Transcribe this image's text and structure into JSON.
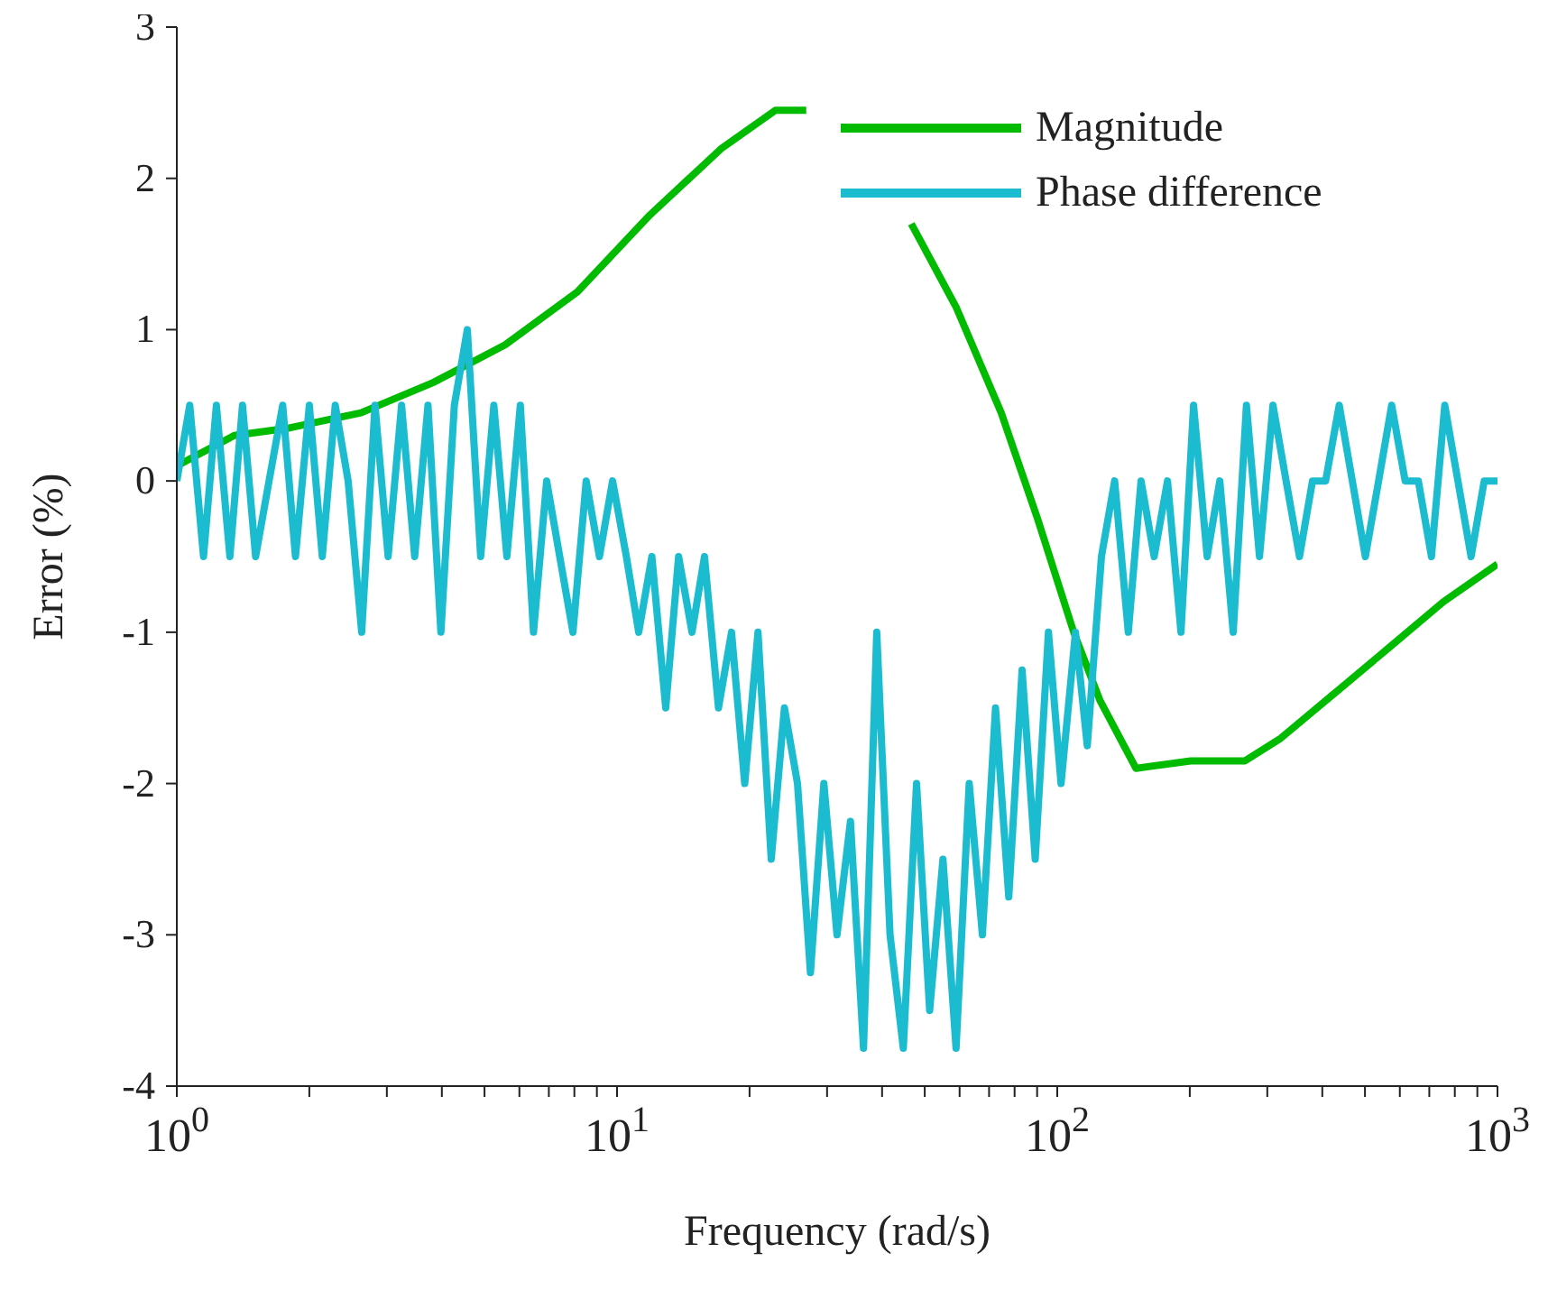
{
  "chart_data": {
    "type": "line",
    "xlabel": "Frequency (rad/s)",
    "ylabel": "Error (%)",
    "log": "x",
    "xlim": [
      1,
      1000
    ],
    "ylim": [
      -4,
      3
    ],
    "yticks": [
      -4,
      -3,
      -2,
      -1,
      0,
      1,
      2,
      3
    ],
    "xticks": [
      {
        "value": 1,
        "label": "10$^{0}$"
      },
      {
        "value": 2,
        "label": null
      },
      {
        "value": 3,
        "label": null
      },
      {
        "value": 4,
        "label": null
      },
      {
        "value": 5,
        "label": null
      },
      {
        "value": 6,
        "label": null
      },
      {
        "value": 7,
        "label": null
      },
      {
        "value": 8,
        "label": null
      },
      {
        "value": 9,
        "label": null
      },
      {
        "value": 10,
        "label": "10$^{1}$"
      },
      {
        "value": 20,
        "label": null
      },
      {
        "value": 30,
        "label": null
      },
      {
        "value": 40,
        "label": null
      },
      {
        "value": 50,
        "label": null
      },
      {
        "value": 60,
        "label": null
      },
      {
        "value": 70,
        "label": null
      },
      {
        "value": 80,
        "label": null
      },
      {
        "value": 90,
        "label": null
      },
      {
        "value": 100,
        "label": "10$^{2}$"
      },
      {
        "value": 200,
        "label": null
      },
      {
        "value": 300,
        "label": null
      },
      {
        "value": 400,
        "label": null
      },
      {
        "value": 500,
        "label": null
      },
      {
        "value": 600,
        "label": null
      },
      {
        "value": 700,
        "label": null
      },
      {
        "value": 800,
        "label": null
      },
      {
        "value": 900,
        "label": null
      },
      {
        "value": 1000,
        "label": "10$^{3}$"
      }
    ],
    "grid": false,
    "legend": "top right",
    "marker": "none",
    "line_style": "solid",
    "series": [
      {
        "name": "Magnitude",
        "color": "#00bb00",
        "x": [
          1,
          1.35,
          1.8,
          2.62,
          3.82,
          5.57,
          8.13,
          11.8,
          17.3,
          22.9,
          26.9,
          35,
          46.6,
          58.9,
          74.6,
          90.2,
          109,
          125,
          151,
          201,
          267,
          322,
          428,
          568,
          753,
          1000
        ],
        "values": [
          0.1,
          0.3,
          0.35,
          0.45,
          0.65,
          0.9,
          1.25,
          1.75,
          2.2,
          2.45,
          2.45,
          null,
          1.7,
          1.15,
          0.45,
          -0.25,
          -1.0,
          -1.45,
          -1.9,
          -1.85,
          -1.85,
          -1.7,
          -1.4,
          -1.1,
          -0.8,
          -0.55
        ]
      },
      {
        "name": "Phase difference",
        "color": "#1bbccf",
        "x": [
          1,
          1.07,
          1.15,
          1.23,
          1.32,
          1.41,
          1.51,
          1.62,
          1.74,
          1.86,
          2,
          2.14,
          2.29,
          2.45,
          2.63,
          2.82,
          3.02,
          3.24,
          3.47,
          3.72,
          3.98,
          4.27,
          4.57,
          4.9,
          5.25,
          5.62,
          6.03,
          6.46,
          6.92,
          7.41,
          7.94,
          8.51,
          9.12,
          9.77,
          10.5,
          11.2,
          12,
          12.9,
          13.8,
          14.8,
          15.8,
          17,
          18.2,
          19.5,
          20.9,
          22.4,
          24,
          25.7,
          27.5,
          29.5,
          31.6,
          33.9,
          36.3,
          38.9,
          41.7,
          44.7,
          47.9,
          51.3,
          55,
          58.9,
          63.1,
          67.6,
          72.4,
          77.6,
          83.2,
          89.1,
          95.5,
          102,
          110,
          117,
          126,
          135,
          145,
          155,
          166,
          178,
          191,
          204,
          219,
          234,
          251,
          269,
          288,
          309,
          331,
          355,
          380,
          407,
          437,
          468,
          501,
          537,
          575,
          617,
          661,
          708,
          759,
          813,
          871,
          933,
          1000
        ],
        "values": [
          0,
          0.5,
          -0.5,
          0.5,
          -0.5,
          0.5,
          -0.5,
          0,
          0.5,
          -0.5,
          0.5,
          -0.5,
          0.5,
          0,
          -1,
          0.5,
          -0.5,
          0.5,
          -0.5,
          0.5,
          -1,
          0.5,
          1,
          -0.5,
          0.5,
          -0.5,
          0.5,
          -1,
          0,
          -0.5,
          -1,
          0,
          -0.5,
          0,
          -0.5,
          -1,
          -0.5,
          -1.5,
          -0.5,
          -1,
          -0.5,
          -1.5,
          -1,
          -2,
          -1,
          -2.5,
          -1.5,
          -2,
          -3.25,
          -2,
          -3,
          -2.25,
          -3.75,
          -1,
          -3,
          -3.75,
          -2,
          -3.5,
          -2.5,
          -3.75,
          -2,
          -3,
          -1.5,
          -2.75,
          -1.25,
          -2.5,
          -1,
          -2,
          -1,
          -1.75,
          -0.5,
          0,
          -1,
          0,
          -0.5,
          0,
          -1,
          0.5,
          -0.5,
          0,
          -1,
          0.5,
          -0.5,
          0.5,
          0,
          -0.5,
          0,
          0,
          0.5,
          0,
          -0.5,
          0,
          0.5,
          0,
          0,
          -0.5,
          0.5,
          0,
          -0.5,
          0,
          0
        ]
      }
    ]
  }
}
